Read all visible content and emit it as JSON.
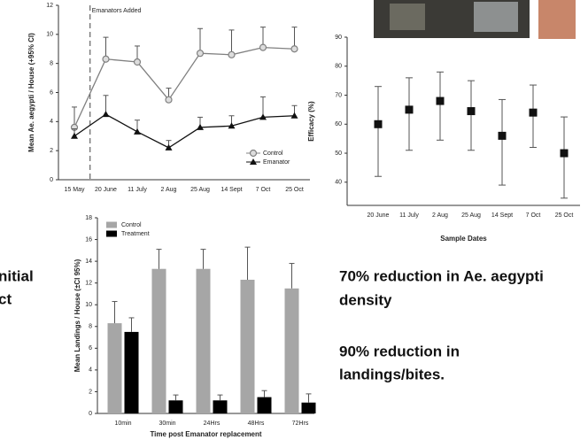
{
  "chart_data": [
    {
      "type": "line",
      "y_label": "Mean Ae. aegypti / House (+95% CI)",
      "annotation": "Emanators Added",
      "categories": [
        "15 May",
        "20 June",
        "11 July",
        "2 Aug",
        "25 Aug",
        "14 Sept",
        "7 Oct",
        "25 Oct"
      ],
      "series": [
        {
          "name": "Control",
          "color": "#808080",
          "marker": "circle",
          "values": [
            3.6,
            8.3,
            8.1,
            5.5,
            8.7,
            8.6,
            9.1,
            9.0
          ],
          "errors": [
            1.4,
            1.5,
            1.1,
            0.8,
            1.7,
            1.7,
            1.4,
            1.5
          ]
        },
        {
          "name": "Emanator",
          "color": "#111111",
          "marker": "triangle",
          "values": [
            3.0,
            4.5,
            3.3,
            2.2,
            3.6,
            3.7,
            4.3,
            4.4
          ],
          "errors": [
            0.5,
            1.3,
            0.8,
            0.5,
            0.7,
            0.7,
            1.4,
            0.7
          ]
        }
      ],
      "ylim": [
        0,
        12
      ],
      "yticks": [
        0,
        2,
        4,
        6,
        8,
        10,
        12
      ],
      "legend": "lower right",
      "grid": false
    },
    {
      "type": "scatter",
      "y_label": "Efficacy (%)",
      "x_label": "Sample Dates",
      "categories": [
        "20 June",
        "11 July",
        "2 Aug",
        "25 Aug",
        "14 Sept",
        "7 Oct",
        "25 Oct"
      ],
      "color": "#111111",
      "values": [
        60,
        65,
        68,
        64.5,
        56,
        64,
        50
      ],
      "lower": [
        42,
        51,
        54.5,
        51,
        39,
        52,
        34.5
      ],
      "upper": [
        73,
        76,
        78,
        75,
        68.5,
        73.5,
        62.5
      ],
      "ylim": [
        32,
        90
      ],
      "yticks": [
        40,
        50,
        60,
        70,
        80,
        90
      ],
      "grid": false
    },
    {
      "type": "bar",
      "y_label": "Mean Landings / House (±CI 95%)",
      "x_label": "Time post Emanator replacement",
      "categories": [
        "10min",
        "30min",
        "24Hrs",
        "48Hrs",
        "72Hrs"
      ],
      "series": [
        {
          "name": "Control",
          "color": "#a6a6a6",
          "values": [
            8.3,
            13.3,
            13.3,
            12.3,
            11.5
          ],
          "errors": [
            2.0,
            1.8,
            1.8,
            3.0,
            2.3
          ]
        },
        {
          "name": "Treatment",
          "color": "#000000",
          "values": [
            7.5,
            1.2,
            1.2,
            1.5,
            1.0
          ],
          "errors": [
            1.3,
            0.5,
            0.5,
            0.6,
            0.8
          ]
        }
      ],
      "ylim": [
        0,
        18
      ],
      "yticks": [
        0,
        2,
        4,
        6,
        8,
        10,
        12,
        14,
        16,
        18
      ],
      "legend": "upper left",
      "grid": false
    }
  ],
  "slide_text": {
    "left": [
      "nitial",
      "ct"
    ],
    "right": [
      [
        "70% reduction in Ae. aegypti",
        "density"
      ],
      [
        "90% reduction in",
        "landings/bites."
      ]
    ]
  }
}
